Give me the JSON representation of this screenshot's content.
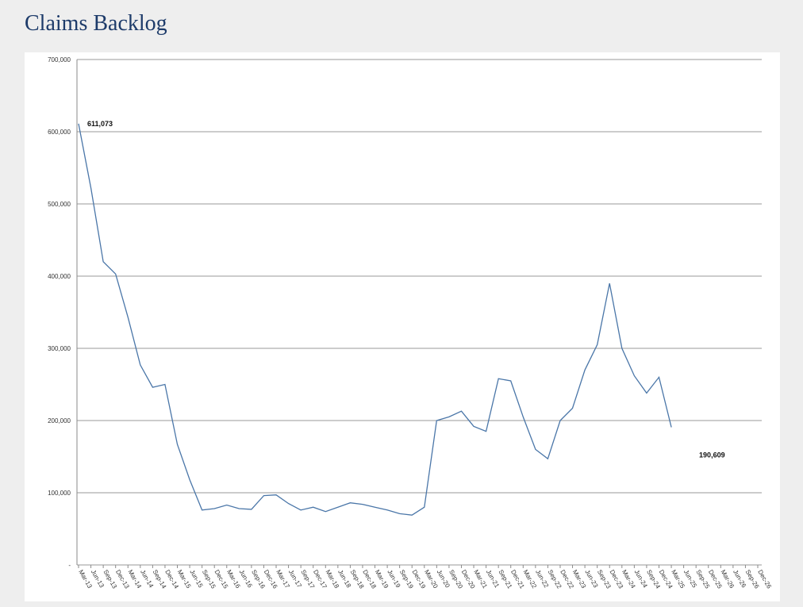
{
  "chart_data": {
    "type": "line",
    "title": "Claims Backlog",
    "categories": [
      "Mar-13",
      "Jun-13",
      "Sep-13",
      "Dec-13",
      "Mar-14",
      "Jun-14",
      "Sep-14",
      "Dec-14",
      "Mar-15",
      "Jun-15",
      "Sep-15",
      "Dec-15",
      "Mar-16",
      "Jun-16",
      "Sep-16",
      "Dec-16",
      "Mar-17",
      "Jun-17",
      "Sep-17",
      "Dec-17",
      "Mar-18",
      "Jun-18",
      "Sep-18",
      "Dec-18",
      "Mar-19",
      "Jun-19",
      "Sep-19",
      "Dec-19",
      "Mar-20",
      "Jun-20",
      "Sep-20",
      "Dec-20",
      "Mar-21",
      "Jun-21",
      "Sep-21",
      "Dec-21",
      "Mar-22",
      "Jun-22",
      "Sep-22",
      "Dec-22",
      "Mar-23",
      "Jun-23",
      "Sep-23",
      "Dec-23",
      "Mar-24",
      "Jun-24",
      "Sep-24",
      "Dec-24",
      "Mar-25",
      "Jun-25",
      "Sep-25",
      "Dec-25",
      "Mar-26",
      "Jun-26",
      "Sep-26",
      "Dec-26"
    ],
    "values": [
      611073,
      522000,
      420000,
      403000,
      343000,
      277000,
      246000,
      250000,
      167000,
      118000,
      76000,
      78000,
      83000,
      78000,
      77000,
      96000,
      97000,
      85000,
      76000,
      80000,
      74000,
      80000,
      86000,
      84000,
      80000,
      76000,
      71000,
      69000,
      80000,
      200000,
      205000,
      213000,
      192000,
      185000,
      258000,
      255000,
      205000,
      160000,
      147000,
      200000,
      217000,
      270000,
      305000,
      390000,
      300000,
      262000,
      238000,
      260000,
      190609,
      null,
      null,
      null,
      null,
      null,
      null,
      null
    ],
    "value_labels": [
      "611,073",
      null,
      null,
      null,
      null,
      null,
      null,
      null,
      null,
      null,
      null,
      null,
      null,
      null,
      null,
      null,
      null,
      null,
      null,
      null,
      null,
      null,
      null,
      null,
      null,
      null,
      null,
      null,
      null,
      null,
      null,
      null,
      null,
      null,
      null,
      null,
      null,
      null,
      null,
      null,
      null,
      null,
      null,
      null,
      null,
      null,
      null,
      null,
      "190,609",
      null,
      null,
      null,
      null,
      null,
      null,
      null
    ],
    "color": "#4a76a8",
    "ylim": [
      0,
      700000
    ],
    "yticks": [
      {
        "value": 0,
        "label": "-"
      },
      {
        "value": 100000,
        "label": "100,000"
      },
      {
        "value": 200000,
        "label": "200,000"
      },
      {
        "value": 300000,
        "label": "300,000"
      },
      {
        "value": 400000,
        "label": "400,000"
      },
      {
        "value": 500000,
        "label": "500,000"
      },
      {
        "value": 600000,
        "label": "600,000"
      },
      {
        "value": 700000,
        "label": "700,000"
      }
    ],
    "grid": true
  }
}
